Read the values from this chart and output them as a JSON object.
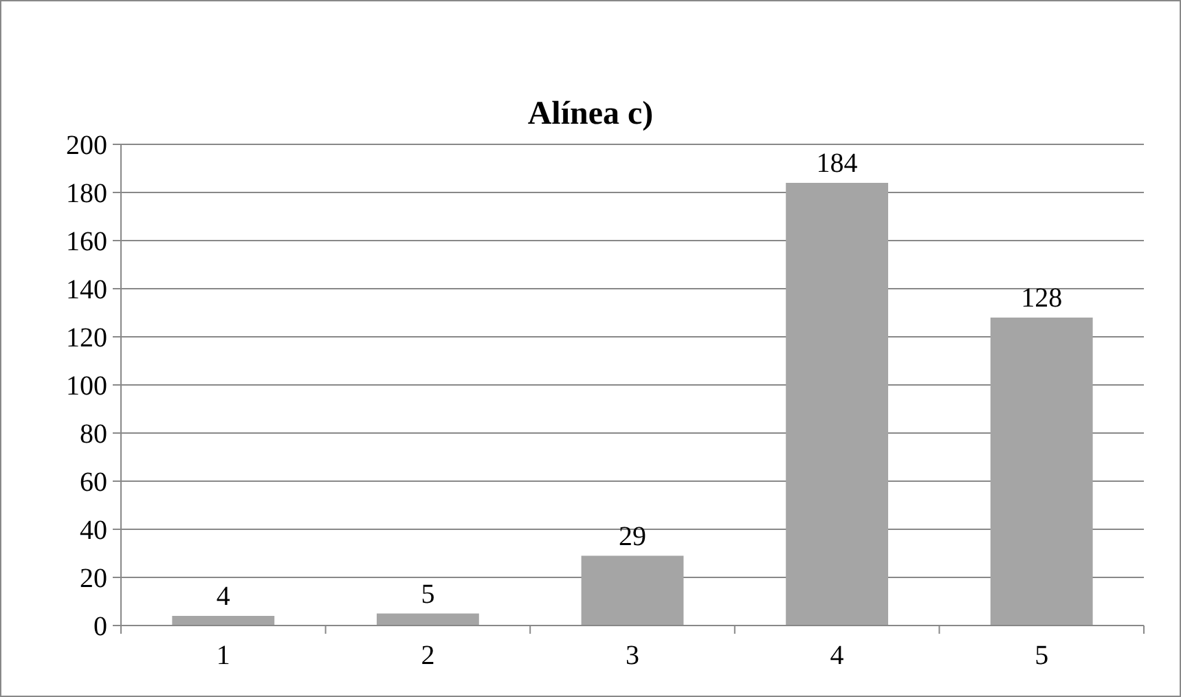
{
  "chart_data": {
    "type": "bar",
    "title": "Alínea c)",
    "categories": [
      "1",
      "2",
      "3",
      "4",
      "5"
    ],
    "values": [
      4,
      5,
      29,
      184,
      128
    ],
    "color": "#a5a5a5",
    "ylim": [
      0,
      200
    ],
    "yticks": [
      0,
      20,
      40,
      60,
      80,
      100,
      120,
      140,
      160,
      180,
      200
    ],
    "grid": "y",
    "data_labels": true
  }
}
